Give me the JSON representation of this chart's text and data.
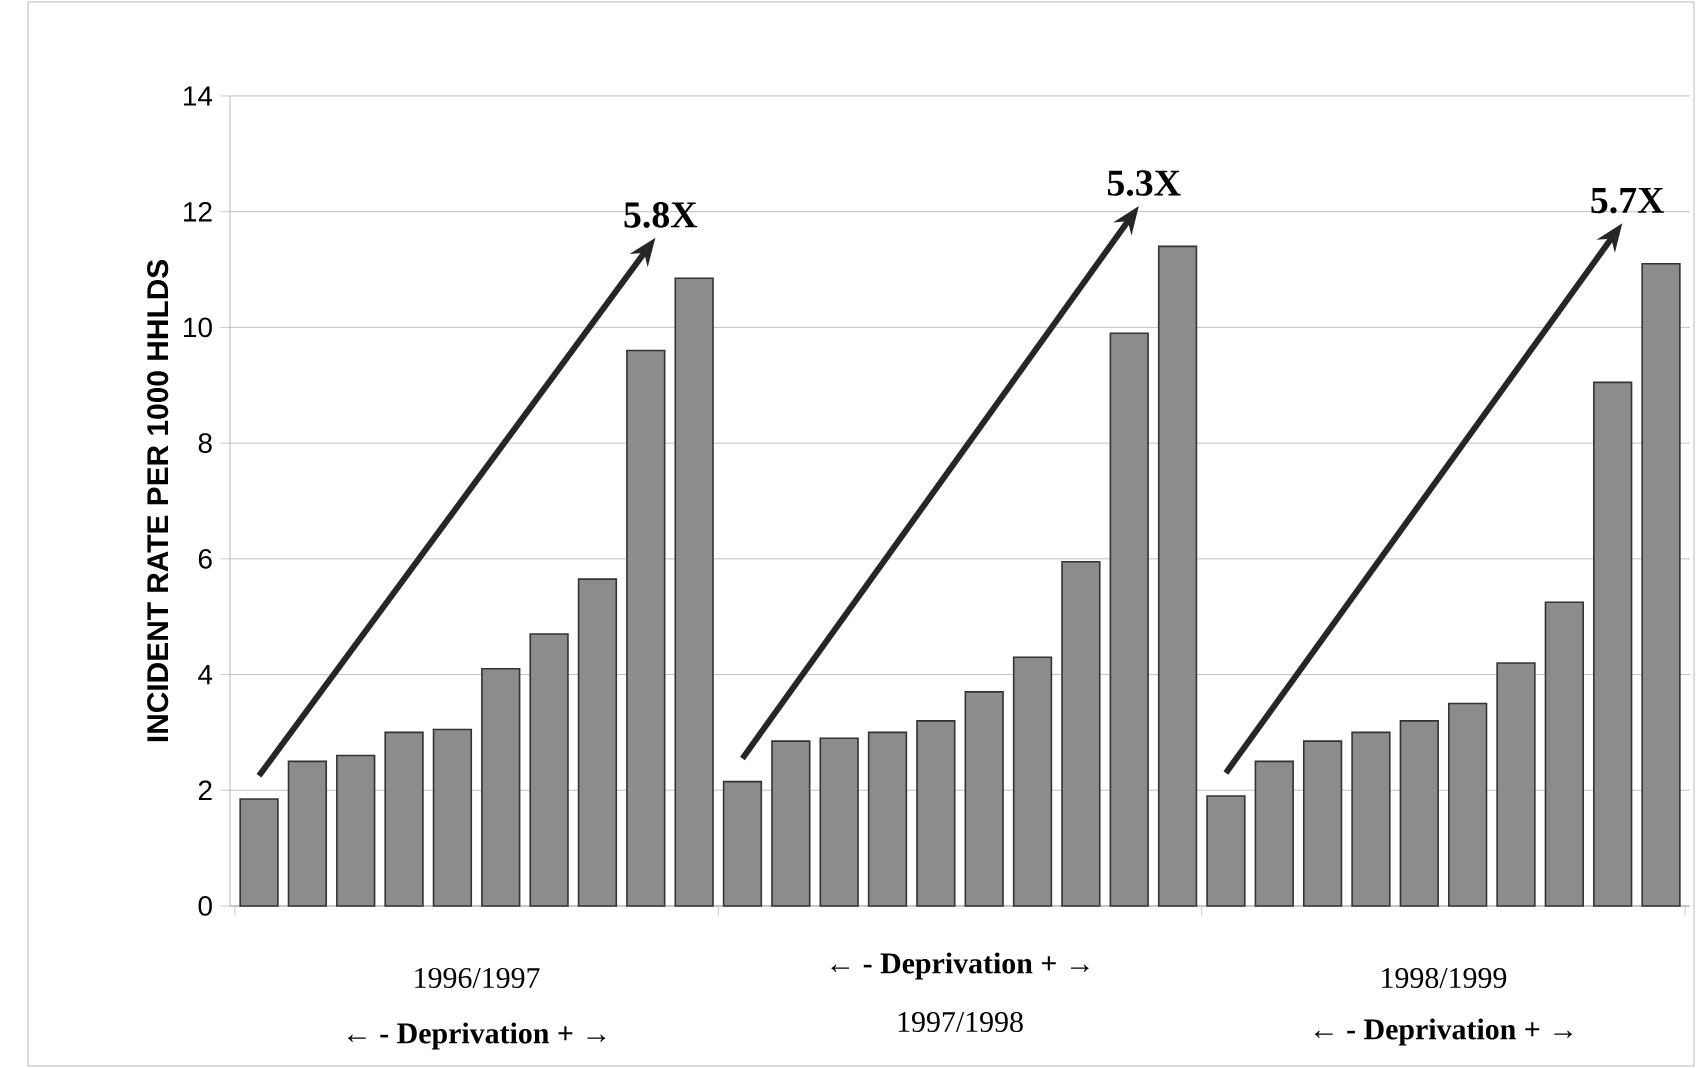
{
  "chart_data": {
    "type": "bar",
    "ylabel": "INCIDENT RATE PER 1000 HHLDS",
    "categories": [
      null,
      null,
      null,
      null,
      null,
      null,
      null,
      null,
      null,
      null,
      null,
      null,
      null,
      null,
      null,
      null,
      null,
      null,
      null,
      null,
      null,
      null,
      null,
      null,
      null,
      null,
      null,
      null,
      null,
      null
    ],
    "values": [
      1.85,
      2.5,
      2.6,
      3.0,
      3.05,
      4.1,
      4.7,
      5.65,
      9.6,
      10.85,
      2.15,
      2.85,
      2.9,
      3.0,
      3.2,
      3.7,
      4.3,
      5.95,
      9.9,
      11.4,
      1.9,
      2.5,
      2.85,
      3.0,
      3.2,
      3.5,
      4.2,
      5.25,
      9.05,
      11.1
    ],
    "color": "#8c8c8c",
    "ylim": [
      0,
      14
    ],
    "yticks": [
      0,
      2,
      4,
      6,
      8,
      10,
      12,
      14
    ],
    "grid": "y",
    "annotations": [
      "1996/1997",
      "← - Deprivation + →",
      "← - Deprivation + →",
      "1997/1998",
      "1998/1999",
      "← - Deprivation + →",
      "5.8X",
      "5.3X",
      "5.7X"
    ]
  }
}
